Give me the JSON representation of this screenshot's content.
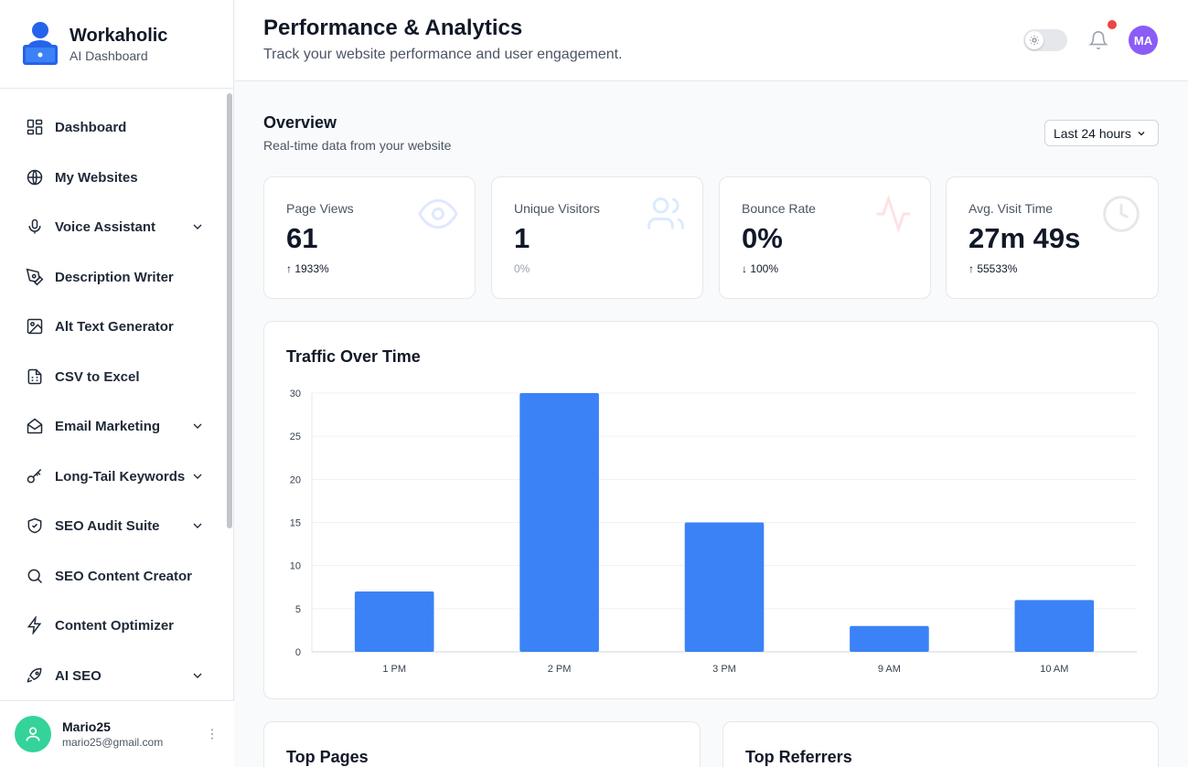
{
  "brand": {
    "name": "Workaholic",
    "subtitle": "AI Dashboard"
  },
  "sidebar": {
    "items": [
      {
        "label": "Dashboard",
        "icon": "grid-icon",
        "expandable": false
      },
      {
        "label": "My Websites",
        "icon": "globe-icon",
        "expandable": false
      },
      {
        "label": "Voice Assistant",
        "icon": "microphone-icon",
        "expandable": true
      },
      {
        "label": "Description Writer",
        "icon": "pen-tool-icon",
        "expandable": false
      },
      {
        "label": "Alt Text Generator",
        "icon": "image-icon",
        "expandable": false
      },
      {
        "label": "CSV to Excel",
        "icon": "spreadsheet-icon",
        "expandable": false
      },
      {
        "label": "Email Marketing",
        "icon": "mail-open-icon",
        "expandable": true
      },
      {
        "label": "Long-Tail Keywords",
        "icon": "key-icon",
        "expandable": true
      },
      {
        "label": "SEO Audit Suite",
        "icon": "shield-check-icon",
        "expandable": true
      },
      {
        "label": "SEO Content Creator",
        "icon": "search-icon",
        "expandable": false
      },
      {
        "label": "Content Optimizer",
        "icon": "lightning-icon",
        "expandable": false
      },
      {
        "label": "AI SEO",
        "icon": "rocket-icon",
        "expandable": true
      }
    ]
  },
  "user": {
    "name": "Mario25",
    "email": "mario25@gmail.com"
  },
  "header": {
    "title": "Performance & Analytics",
    "subtitle": "Track your website performance and user engagement.",
    "avatar_initials": "MA"
  },
  "overview": {
    "title": "Overview",
    "subtitle": "Real-time data from your website",
    "range": "Last 24 hours"
  },
  "stats": [
    {
      "label": "Page Views",
      "value": "61",
      "change": "↑ 1933%",
      "icon": "eye-icon",
      "icon_color": "#e0e7ff"
    },
    {
      "label": "Unique Visitors",
      "value": "1",
      "change": "0%",
      "icon": "users-icon",
      "icon_color": "#dbeafe"
    },
    {
      "label": "Bounce Rate",
      "value": "0%",
      "change": "↓ 100%",
      "icon": "activity-icon",
      "icon_color": "#fde2e4"
    },
    {
      "label": "Avg. Visit Time",
      "value": "27m 49s",
      "change": "↑ 55533%",
      "icon": "clock-icon",
      "icon_color": "#e5e7eb"
    }
  ],
  "traffic": {
    "title": "Traffic Over Time"
  },
  "chart_data": {
    "type": "bar",
    "categories": [
      "1 PM",
      "2 PM",
      "3 PM",
      "9 AM",
      "10 AM"
    ],
    "values": [
      7,
      30,
      15,
      3,
      6
    ],
    "yticks": [
      0,
      5,
      10,
      15,
      20,
      25,
      30
    ],
    "ylim": [
      0,
      30
    ],
    "color": "#3b82f6",
    "grid": true
  },
  "bottom": {
    "top_pages": "Top Pages",
    "top_referrers": "Top Referrers"
  },
  "colors": {
    "accent": "#3b82f6",
    "avatar": "#8b5cf6",
    "user_avatar": "#34d399",
    "notification": "#ef4444"
  }
}
